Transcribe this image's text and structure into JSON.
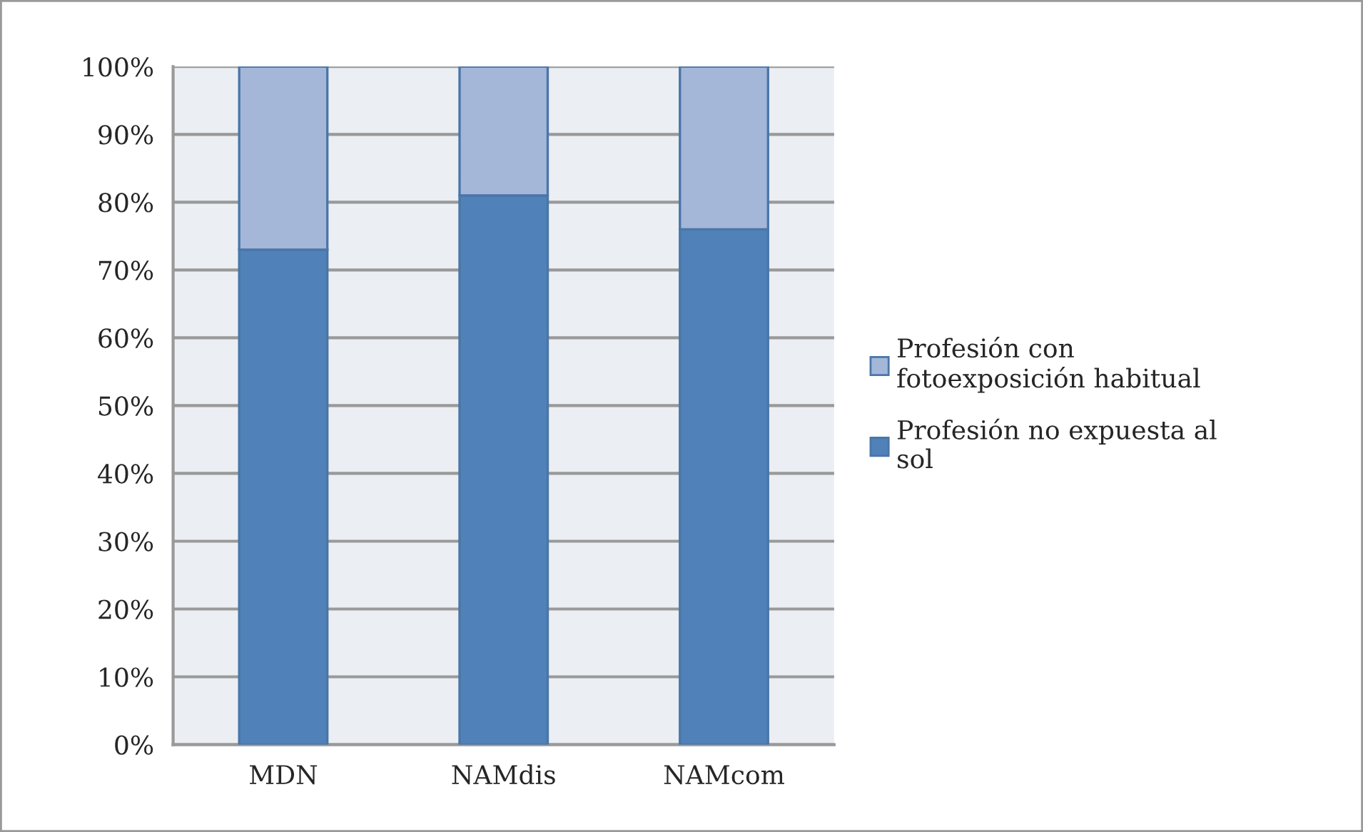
{
  "chart_data": {
    "type": "bar",
    "stacked": true,
    "categories": [
      "MDN",
      "NAMdis",
      "NAMcom"
    ],
    "series": [
      {
        "name": "Profesión no expuesta al sol",
        "color": "#5081b8",
        "values": [
          73,
          81,
          76
        ]
      },
      {
        "name": "Profesión con fotoexposición habitual",
        "color": "#a4b7d9",
        "values": [
          27,
          19,
          24
        ]
      }
    ],
    "ylim": [
      0,
      100
    ],
    "yticks": [
      {
        "value": 0,
        "label": "0%"
      },
      {
        "value": 10,
        "label": "10%"
      },
      {
        "value": 20,
        "label": "20%"
      },
      {
        "value": 30,
        "label": "30%"
      },
      {
        "value": 40,
        "label": "40%"
      },
      {
        "value": 50,
        "label": "50%"
      },
      {
        "value": 60,
        "label": "60%"
      },
      {
        "value": 70,
        "label": "70%"
      },
      {
        "value": 80,
        "label": "80%"
      },
      {
        "value": 90,
        "label": "90%"
      },
      {
        "value": 100,
        "label": "100%"
      }
    ],
    "grid": "y",
    "legend": "right"
  }
}
